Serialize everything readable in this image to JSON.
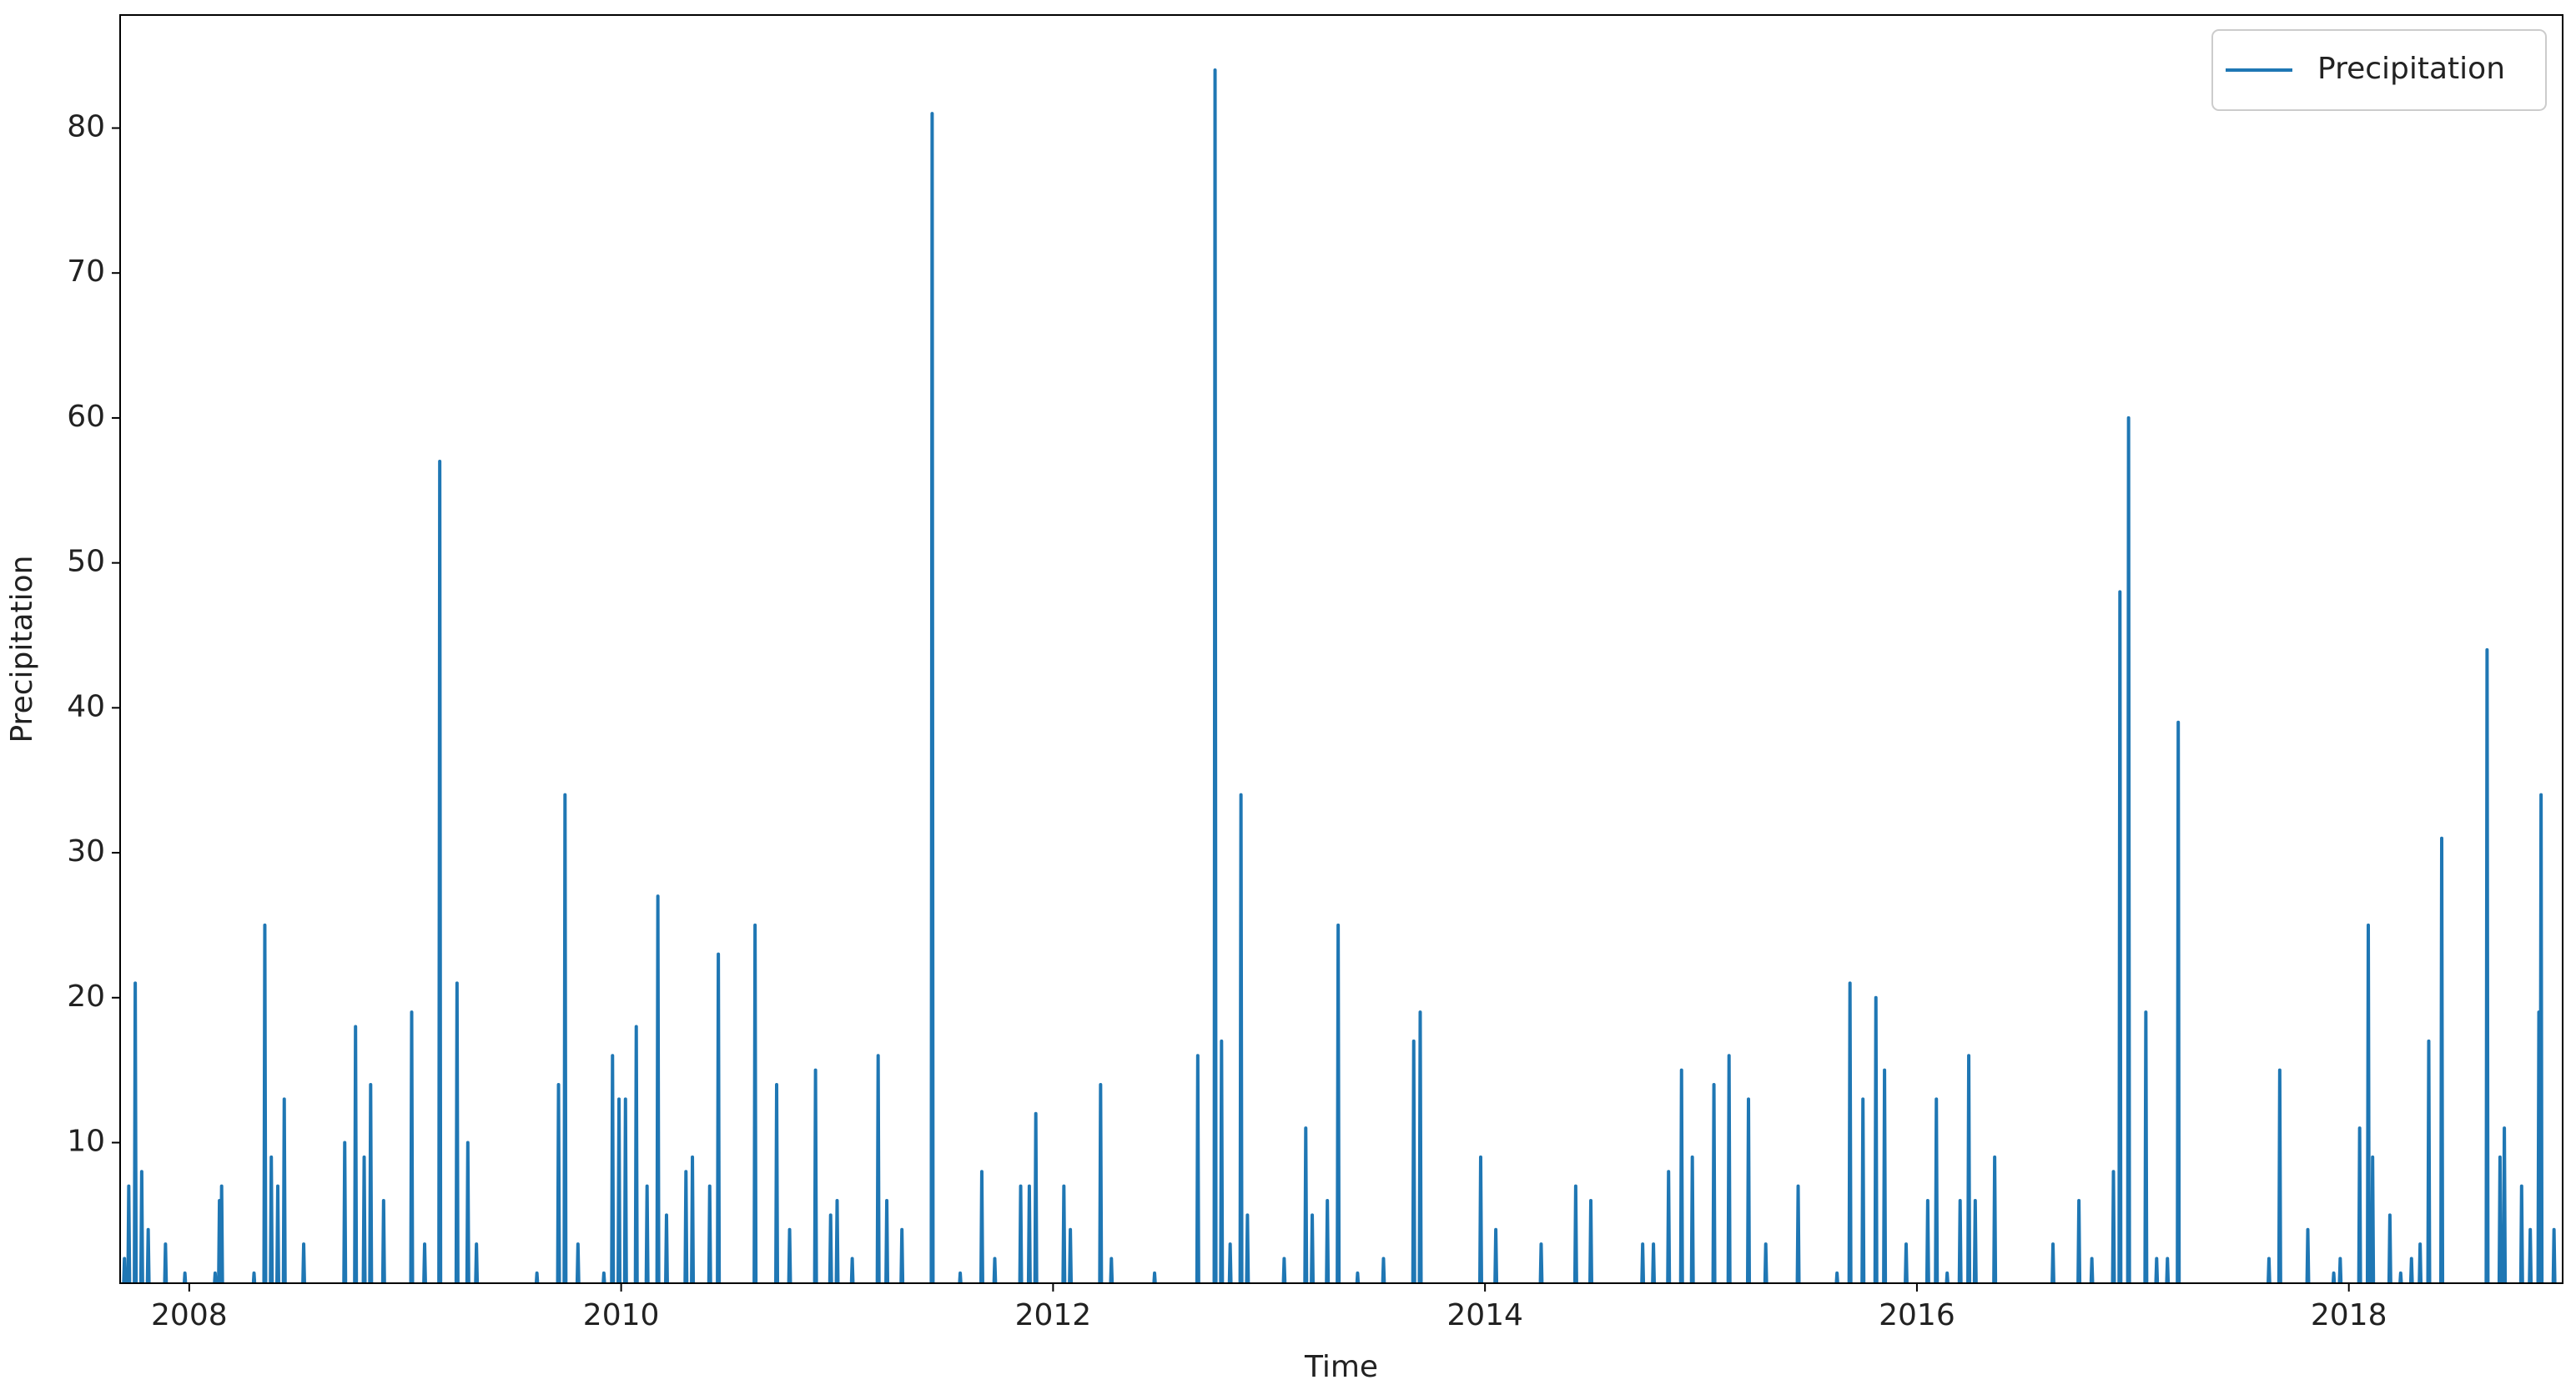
{
  "chart_data": {
    "type": "line",
    "xlabel": "Time",
    "ylabel": "Precipitation",
    "xlim": [
      2007.68,
      2018.99
    ],
    "xticks": [
      2008,
      2010,
      2012,
      2014,
      2016,
      2018
    ],
    "ylim": [
      0.3,
      87.8
    ],
    "yticks": [
      10,
      20,
      30,
      40,
      50,
      60,
      70,
      80
    ],
    "legend": "upper right",
    "x": [
      2007.696,
      2007.7,
      2007.704,
      2007.716,
      2007.72,
      2007.724,
      2007.746,
      2007.75,
      2007.754,
      2007.776,
      2007.78,
      2007.784,
      2007.806,
      2007.81,
      2007.814,
      2007.886,
      2007.89,
      2007.894,
      2007.976,
      2007.98,
      2007.984,
      2008.116,
      2008.12,
      2008.124,
      2008.136,
      2008.14,
      2008.144,
      2008.146,
      2008.15,
      2008.154,
      2008.296,
      2008.3,
      2008.304,
      2008.346,
      2008.35,
      2008.354,
      2008.376,
      2008.38,
      2008.384,
      2008.406,
      2008.41,
      2008.414,
      2008.436,
      2008.44,
      2008.444,
      2008.526,
      2008.53,
      2008.534,
      2008.716,
      2008.72,
      2008.724,
      2008.766,
      2008.77,
      2008.774,
      2008.806,
      2008.81,
      2008.814,
      2008.836,
      2008.84,
      2008.844,
      2008.896,
      2008.9,
      2008.904,
      2009.026,
      2009.03,
      2009.034,
      2009.086,
      2009.09,
      2009.094,
      2009.156,
      2009.16,
      2009.164,
      2009.236,
      2009.24,
      2009.244,
      2009.286,
      2009.29,
      2009.294,
      2009.326,
      2009.33,
      2009.334,
      2009.606,
      2009.61,
      2009.614,
      2009.706,
      2009.71,
      2009.714,
      2009.736,
      2009.74,
      2009.744,
      2009.796,
      2009.8,
      2009.804,
      2009.916,
      2009.92,
      2009.924,
      2009.956,
      2009.96,
      2009.964,
      2009.986,
      2009.99,
      2009.994,
      2010.016,
      2010.02,
      2010.024,
      2010.066,
      2010.07,
      2010.074,
      2010.116,
      2010.12,
      2010.124,
      2010.166,
      2010.17,
      2010.174,
      2010.206,
      2010.21,
      2010.214,
      2010.296,
      2010.3,
      2010.304,
      2010.326,
      2010.33,
      2010.334,
      2010.406,
      2010.41,
      2010.414,
      2010.446,
      2010.45,
      2010.454,
      2010.616,
      2010.62,
      2010.624,
      2010.716,
      2010.72,
      2010.724,
      2010.776,
      2010.78,
      2010.784,
      2010.896,
      2010.9,
      2010.904,
      2010.966,
      2010.97,
      2010.974,
      2010.996,
      2011.0,
      2011.004,
      2011.066,
      2011.07,
      2011.074,
      2011.186,
      2011.19,
      2011.194,
      2011.226,
      2011.23,
      2011.234,
      2011.296,
      2011.3,
      2011.304,
      2011.436,
      2011.44,
      2011.444,
      2011.566,
      2011.57,
      2011.574,
      2011.666,
      2011.67,
      2011.674,
      2011.726,
      2011.73,
      2011.734,
      2011.846,
      2011.85,
      2011.854,
      2011.886,
      2011.89,
      2011.894,
      2011.916,
      2011.92,
      2011.924,
      2012.046,
      2012.05,
      2012.054,
      2012.076,
      2012.08,
      2012.084,
      2012.216,
      2012.22,
      2012.224,
      2012.266,
      2012.27,
      2012.274,
      2012.466,
      2012.47,
      2012.474,
      2012.666,
      2012.67,
      2012.674,
      2012.746,
      2012.75,
      2012.754,
      2012.776,
      2012.78,
      2012.784,
      2012.816,
      2012.82,
      2012.824,
      2012.866,
      2012.87,
      2012.874,
      2012.896,
      2012.9,
      2012.904,
      2013.066,
      2013.07,
      2013.074,
      2013.166,
      2013.17,
      2013.174,
      2013.196,
      2013.2,
      2013.204,
      2013.266,
      2013.27,
      2013.274,
      2013.316,
      2013.32,
      2013.324,
      2013.406,
      2013.41,
      2013.414,
      2013.526,
      2013.53,
      2013.534,
      2013.666,
      2013.67,
      2013.674,
      2013.696,
      2013.7,
      2013.704,
      2013.976,
      2013.98,
      2013.984,
      2014.046,
      2014.05,
      2014.054,
      2014.256,
      2014.26,
      2014.264,
      2014.416,
      2014.42,
      2014.424,
      2014.486,
      2014.49,
      2014.494,
      2014.726,
      2014.73,
      2014.734,
      2014.776,
      2014.78,
      2014.784,
      2014.846,
      2014.85,
      2014.854,
      2014.906,
      2014.91,
      2014.914,
      2014.956,
      2014.96,
      2014.964,
      2015.056,
      2015.06,
      2015.064,
      2015.126,
      2015.13,
      2015.134,
      2015.216,
      2015.22,
      2015.224,
      2015.296,
      2015.3,
      2015.304,
      2015.446,
      2015.45,
      2015.454,
      2015.626,
      2015.63,
      2015.634,
      2015.686,
      2015.69,
      2015.694,
      2015.746,
      2015.75,
      2015.754,
      2015.806,
      2015.81,
      2015.814,
      2015.846,
      2015.85,
      2015.854,
      2015.946,
      2015.95,
      2015.954,
      2016.046,
      2016.05,
      2016.054,
      2016.086,
      2016.09,
      2016.094,
      2016.136,
      2016.14,
      2016.144,
      2016.196,
      2016.2,
      2016.204,
      2016.236,
      2016.24,
      2016.244,
      2016.266,
      2016.27,
      2016.274,
      2016.356,
      2016.36,
      2016.364,
      2016.626,
      2016.63,
      2016.634,
      2016.746,
      2016.75,
      2016.754,
      2016.806,
      2016.81,
      2016.814,
      2016.906,
      2016.91,
      2016.914,
      2016.936,
      2016.94,
      2016.944,
      2016.976,
      2016.98,
      2016.984,
      2017.056,
      2017.06,
      2017.064,
      2017.106,
      2017.11,
      2017.114,
      2017.156,
      2017.16,
      2017.164,
      2017.206,
      2017.21,
      2017.214,
      2017.626,
      2017.63,
      2017.634,
      2017.676,
      2017.68,
      2017.684,
      2017.806,
      2017.81,
      2017.814,
      2017.926,
      2017.93,
      2017.934,
      2017.956,
      2017.96,
      2017.964,
      2018.046,
      2018.05,
      2018.054,
      2018.086,
      2018.09,
      2018.094,
      2018.106,
      2018.11,
      2018.114,
      2018.186,
      2018.19,
      2018.194,
      2018.236,
      2018.24,
      2018.244,
      2018.286,
      2018.29,
      2018.294,
      2018.326,
      2018.33,
      2018.334,
      2018.366,
      2018.37,
      2018.374,
      2018.426,
      2018.43,
      2018.434,
      2018.636,
      2018.64,
      2018.644,
      2018.696,
      2018.7,
      2018.704,
      2018.716,
      2018.72,
      2018.724,
      2018.796,
      2018.8,
      2018.804,
      2018.836,
      2018.84,
      2018.844,
      2018.876,
      2018.88,
      2018.884,
      2018.886,
      2018.89,
      2018.894,
      2018.946,
      2018.95,
      2018.954
    ],
    "series": [
      {
        "name": "Precipitation",
        "color": "#1f77b4",
        "values": [
          0,
          2,
          0,
          0,
          7,
          0,
          0,
          21,
          0,
          0,
          8,
          0,
          0,
          4,
          0,
          0,
          3,
          0,
          0,
          1,
          0,
          0,
          1,
          0,
          0,
          6,
          0,
          0,
          7,
          0,
          0,
          1,
          0,
          0,
          25,
          0,
          0,
          9,
          0,
          0,
          7,
          0,
          0,
          13,
          0,
          0,
          3,
          0,
          0,
          10,
          0,
          0,
          18,
          0,
          0,
          9,
          0,
          0,
          14,
          0,
          0,
          6,
          0,
          0,
          19,
          0,
          0,
          3,
          0,
          0,
          57,
          0,
          0,
          21,
          0,
          0,
          10,
          0,
          0,
          3,
          0,
          0,
          1,
          0,
          0,
          14,
          0,
          0,
          34,
          0,
          0,
          3,
          0,
          0,
          1,
          0,
          0,
          16,
          0,
          0,
          13,
          0,
          0,
          13,
          0,
          0,
          18,
          0,
          0,
          7,
          0,
          0,
          27,
          0,
          0,
          5,
          0,
          0,
          8,
          0,
          0,
          9,
          0,
          0,
          7,
          0,
          0,
          23,
          0,
          0,
          25,
          0,
          0,
          14,
          0,
          0,
          4,
          0,
          0,
          15,
          0,
          0,
          5,
          0,
          0,
          6,
          0,
          0,
          2,
          0,
          0,
          16,
          0,
          0,
          6,
          0,
          0,
          4,
          0,
          0,
          81,
          0,
          0,
          1,
          0,
          0,
          8,
          0,
          0,
          2,
          0,
          0,
          7,
          0,
          0,
          7,
          0,
          0,
          12,
          0,
          0,
          7,
          0,
          0,
          4,
          0,
          0,
          14,
          0,
          0,
          2,
          0,
          0,
          1,
          0,
          0,
          16,
          0,
          0,
          84,
          0,
          0,
          17,
          0,
          0,
          3,
          0,
          0,
          34,
          0,
          0,
          5,
          0,
          0,
          2,
          0,
          0,
          11,
          0,
          0,
          5,
          0,
          0,
          6,
          0,
          0,
          25,
          0,
          0,
          1,
          0,
          0,
          2,
          0,
          0,
          17,
          0,
          0,
          19,
          0,
          0,
          9,
          0,
          0,
          4,
          0,
          0,
          3,
          0,
          0,
          7,
          0,
          0,
          6,
          0,
          0,
          3,
          0,
          0,
          3,
          0,
          0,
          8,
          0,
          0,
          15,
          0,
          0,
          9,
          0,
          0,
          14,
          0,
          0,
          16,
          0,
          0,
          13,
          0,
          0,
          3,
          0,
          0,
          7,
          0,
          0,
          1,
          0,
          0,
          21,
          0,
          0,
          13,
          0,
          0,
          20,
          0,
          0,
          15,
          0,
          0,
          3,
          0,
          0,
          6,
          0,
          0,
          13,
          0,
          0,
          1,
          0,
          0,
          6,
          0,
          0,
          16,
          0,
          0,
          6,
          0,
          0,
          9,
          0,
          0,
          3,
          0,
          0,
          6,
          0,
          0,
          2,
          0,
          0,
          8,
          0,
          0,
          48,
          0,
          0,
          60,
          0,
          0,
          19,
          0,
          0,
          2,
          0,
          0,
          2,
          0,
          0,
          39,
          0,
          0,
          2,
          0,
          0,
          15,
          0,
          0,
          4,
          0,
          0,
          1,
          0,
          0,
          2,
          0,
          0,
          11,
          0,
          0,
          25,
          0,
          0,
          9,
          0,
          0,
          5,
          0,
          0,
          1,
          0,
          0,
          2,
          0,
          0,
          3,
          0,
          0,
          17,
          0,
          0,
          31,
          0,
          0,
          44,
          0,
          0,
          9,
          0,
          0,
          11,
          0,
          0,
          7,
          0,
          0,
          4,
          0,
          0,
          19,
          0,
          0,
          34,
          0,
          0,
          4,
          0
        ]
      }
    ]
  }
}
